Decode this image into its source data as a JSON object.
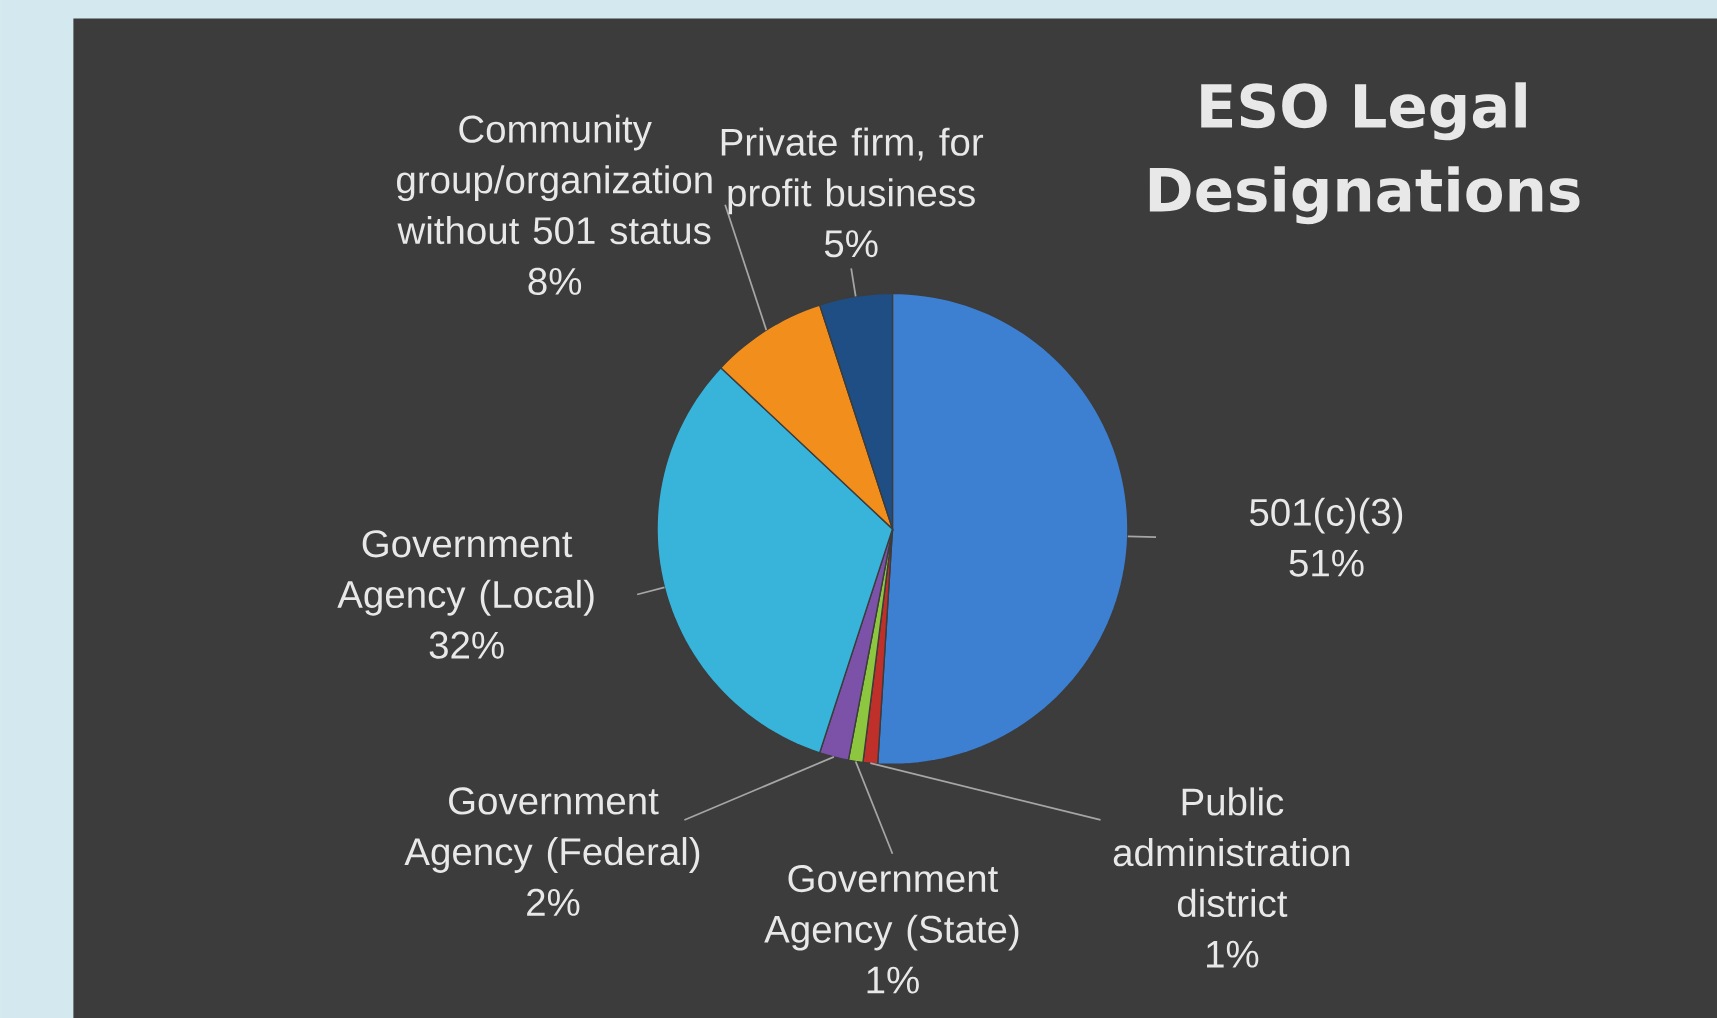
{
  "chart_data": {
    "type": "pie",
    "title": "ESO Legal Designations",
    "categories": [
      "501(c)(3)",
      "Public administration district",
      "Government Agency (State)",
      "Government Agency (Federal)",
      "Government Agency (Local)",
      "Community group/organization without 501 status",
      "Private firm, for profit business"
    ],
    "values": [
      51,
      1,
      1,
      2,
      32,
      8,
      5
    ],
    "value_labels": [
      "51%",
      "1%",
      "1%",
      "2%",
      "32%",
      "8%",
      "5%"
    ],
    "colors": [
      "#3d7fd1",
      "#c0302a",
      "#8dc63f",
      "#7b52a8",
      "#38b3d9",
      "#f28e1c",
      "#1f4e85"
    ]
  }
}
